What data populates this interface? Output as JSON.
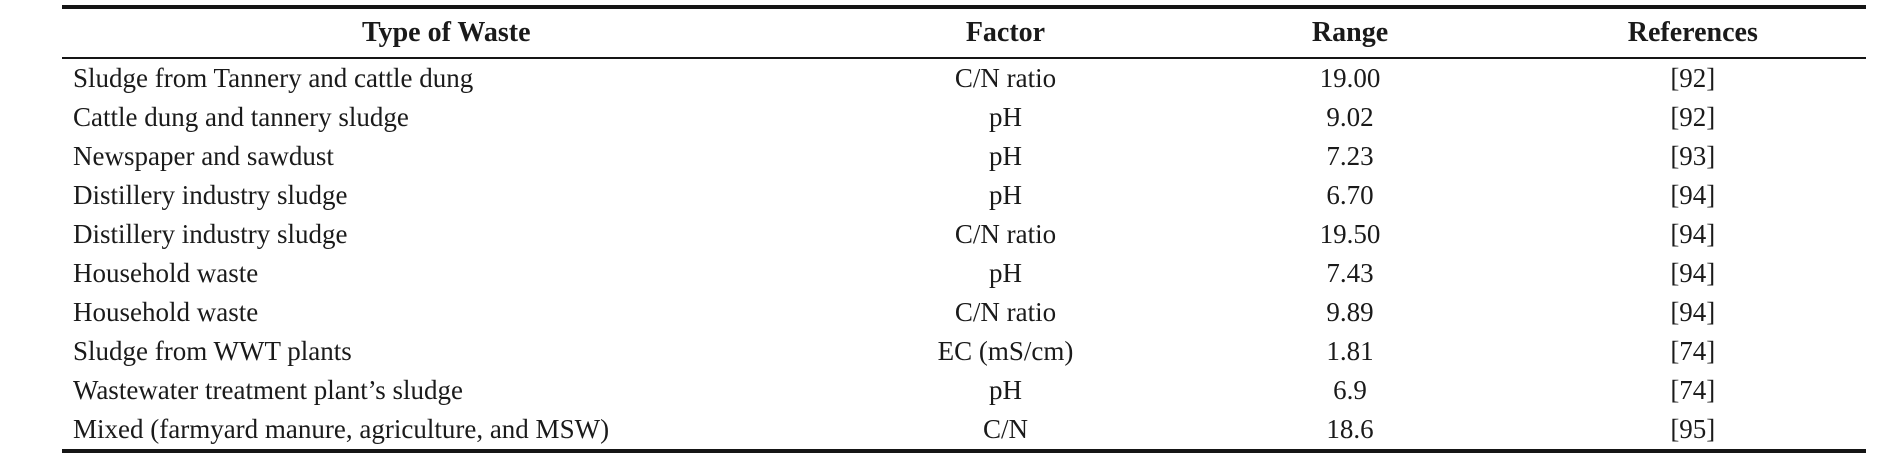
{
  "table": {
    "columns": [
      "Type of Waste",
      "Factor",
      "Range",
      "References"
    ],
    "rows": [
      {
        "cells": [
          "Sludge from Tannery and cattle dung",
          "C/N ratio",
          "19.00",
          "[92]"
        ]
      },
      {
        "cells": [
          "Cattle dung and tannery sludge",
          "pH",
          "9.02",
          "[92]"
        ]
      },
      {
        "cells": [
          "Newspaper and sawdust",
          "pH",
          "7.23",
          "[93]"
        ]
      },
      {
        "cells": [
          "Distillery industry sludge",
          "pH",
          "6.70",
          "[94]"
        ]
      },
      {
        "cells": [
          "Distillery industry sludge",
          "C/N ratio",
          "19.50",
          "[94]"
        ]
      },
      {
        "cells": [
          "Household waste",
          "pH",
          "7.43",
          "[94]"
        ]
      },
      {
        "cells": [
          "Household waste",
          "C/N ratio",
          "9.89",
          "[94]"
        ]
      },
      {
        "cells": [
          "Sludge from WWT plants",
          "EC (mS/cm)",
          "1.81",
          "[74]"
        ]
      },
      {
        "cells": [
          "Wastewater treatment plant’s sludge",
          "pH",
          "6.9",
          "[74]"
        ]
      },
      {
        "cells": [
          "Mixed (farmyard manure, agriculture, and MSW)",
          "C/N",
          "18.6",
          "[95]"
        ]
      }
    ],
    "colors": {
      "text": "#1a1a1a",
      "rule": "#151515",
      "background": "#ffffff"
    }
  }
}
